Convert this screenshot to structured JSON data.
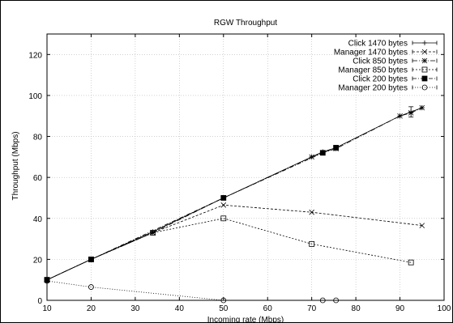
{
  "chart_data": {
    "type": "line",
    "title": "RGW Throughput",
    "xlabel": "Incoming rate (Mbps)",
    "ylabel": "Throughput (Mbps)",
    "xlim": [
      10,
      100
    ],
    "ylim": [
      0,
      130
    ],
    "xticks": [
      10,
      20,
      30,
      40,
      50,
      60,
      70,
      80,
      90,
      100
    ],
    "yticks": [
      0,
      20,
      40,
      60,
      80,
      100,
      120
    ],
    "grid": true,
    "legend_position": "top-right",
    "series": [
      {
        "name": "Click 1470 bytes",
        "marker": "plus",
        "dash": "",
        "x": [
          10,
          20,
          34,
          50,
          70,
          72.5,
          75.5,
          90,
          92.5,
          95
        ],
        "y": [
          10,
          20,
          33.5,
          50,
          70,
          72.5,
          74.5,
          90,
          92,
          94
        ],
        "err": [
          0,
          0,
          0,
          0,
          0,
          0,
          0,
          0,
          2.5,
          0
        ]
      },
      {
        "name": "Manager 1470 bytes",
        "marker": "x",
        "dash": "3,2",
        "x": [
          10,
          20,
          34,
          50,
          70,
          95
        ],
        "y": [
          10,
          20,
          33,
          46.5,
          43,
          36.5
        ],
        "err": [
          0,
          0,
          0,
          0,
          0,
          0
        ]
      },
      {
        "name": "Click 850 bytes",
        "marker": "asterisk",
        "dash": "6,2,1,2",
        "x": [
          10,
          20,
          34,
          50,
          70,
          72.5,
          75.5,
          90,
          92.5,
          95
        ],
        "y": [
          10,
          20,
          33,
          50,
          70,
          72,
          74,
          90,
          91.5,
          94
        ],
        "err": [
          0,
          0,
          0,
          0,
          0,
          0,
          0,
          0,
          0,
          0
        ]
      },
      {
        "name": "Manager 850 bytes",
        "marker": "square-open",
        "dash": "2,2",
        "x": [
          10,
          20,
          34,
          50,
          70,
          92.5
        ],
        "y": [
          10,
          20,
          33,
          40,
          27.5,
          18.5
        ],
        "err": [
          0,
          0,
          0,
          0,
          0,
          0
        ]
      },
      {
        "name": "Click 200 bytes",
        "marker": "square-filled",
        "dash": "5,2,1,2",
        "x": [
          10,
          20,
          50,
          72.5,
          75.5
        ],
        "y": [
          10,
          20,
          50,
          72,
          74.5
        ],
        "err": [
          0,
          0,
          0,
          0,
          0
        ]
      },
      {
        "name": "Manager 200 bytes",
        "marker": "circle-open",
        "dash": "1,2",
        "x": [
          10,
          20,
          50,
          72.5,
          75.5
        ],
        "y": [
          9.5,
          6.5,
          0,
          0,
          0
        ],
        "err": [
          0,
          0,
          0,
          0,
          0
        ]
      }
    ]
  }
}
